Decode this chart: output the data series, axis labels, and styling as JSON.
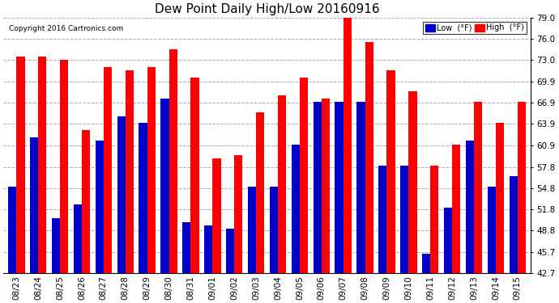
{
  "title": "Dew Point Daily High/Low 20160916",
  "copyright": "Copyright 2016 Cartronics.com",
  "yticks": [
    42.7,
    45.7,
    48.8,
    51.8,
    54.8,
    57.8,
    60.9,
    63.9,
    66.9,
    69.9,
    73.0,
    76.0,
    79.0
  ],
  "ylim": [
    42.7,
    79.0
  ],
  "categories": [
    "08/23",
    "08/24",
    "08/25",
    "08/26",
    "08/27",
    "08/28",
    "08/29",
    "08/30",
    "08/31",
    "09/01",
    "09/02",
    "09/03",
    "09/04",
    "09/05",
    "09/06",
    "09/07",
    "09/08",
    "09/09",
    "09/10",
    "09/11",
    "09/12",
    "09/13",
    "09/14",
    "09/15"
  ],
  "high_values": [
    73.5,
    73.5,
    73.0,
    63.0,
    72.0,
    71.5,
    72.0,
    74.5,
    70.5,
    59.0,
    59.5,
    65.5,
    68.0,
    70.5,
    67.5,
    79.0,
    75.5,
    71.5,
    68.5,
    58.0,
    61.0,
    67.0,
    64.0,
    67.0
  ],
  "low_values": [
    55.0,
    62.0,
    50.5,
    52.5,
    61.5,
    65.0,
    64.0,
    67.5,
    50.0,
    49.5,
    49.0,
    55.0,
    55.0,
    61.0,
    67.0,
    67.0,
    67.0,
    58.0,
    58.0,
    45.5,
    52.0,
    61.5,
    55.0,
    56.5
  ],
  "high_color": "#FF0000",
  "low_color": "#0000CC",
  "background_color": "#FFFFFF",
  "plot_bg_color": "#FFFFFF",
  "grid_color": "#AAAAAA",
  "title_fontsize": 11,
  "tick_fontsize": 7.5,
  "bar_width": 0.38,
  "ymin": 42.7
}
